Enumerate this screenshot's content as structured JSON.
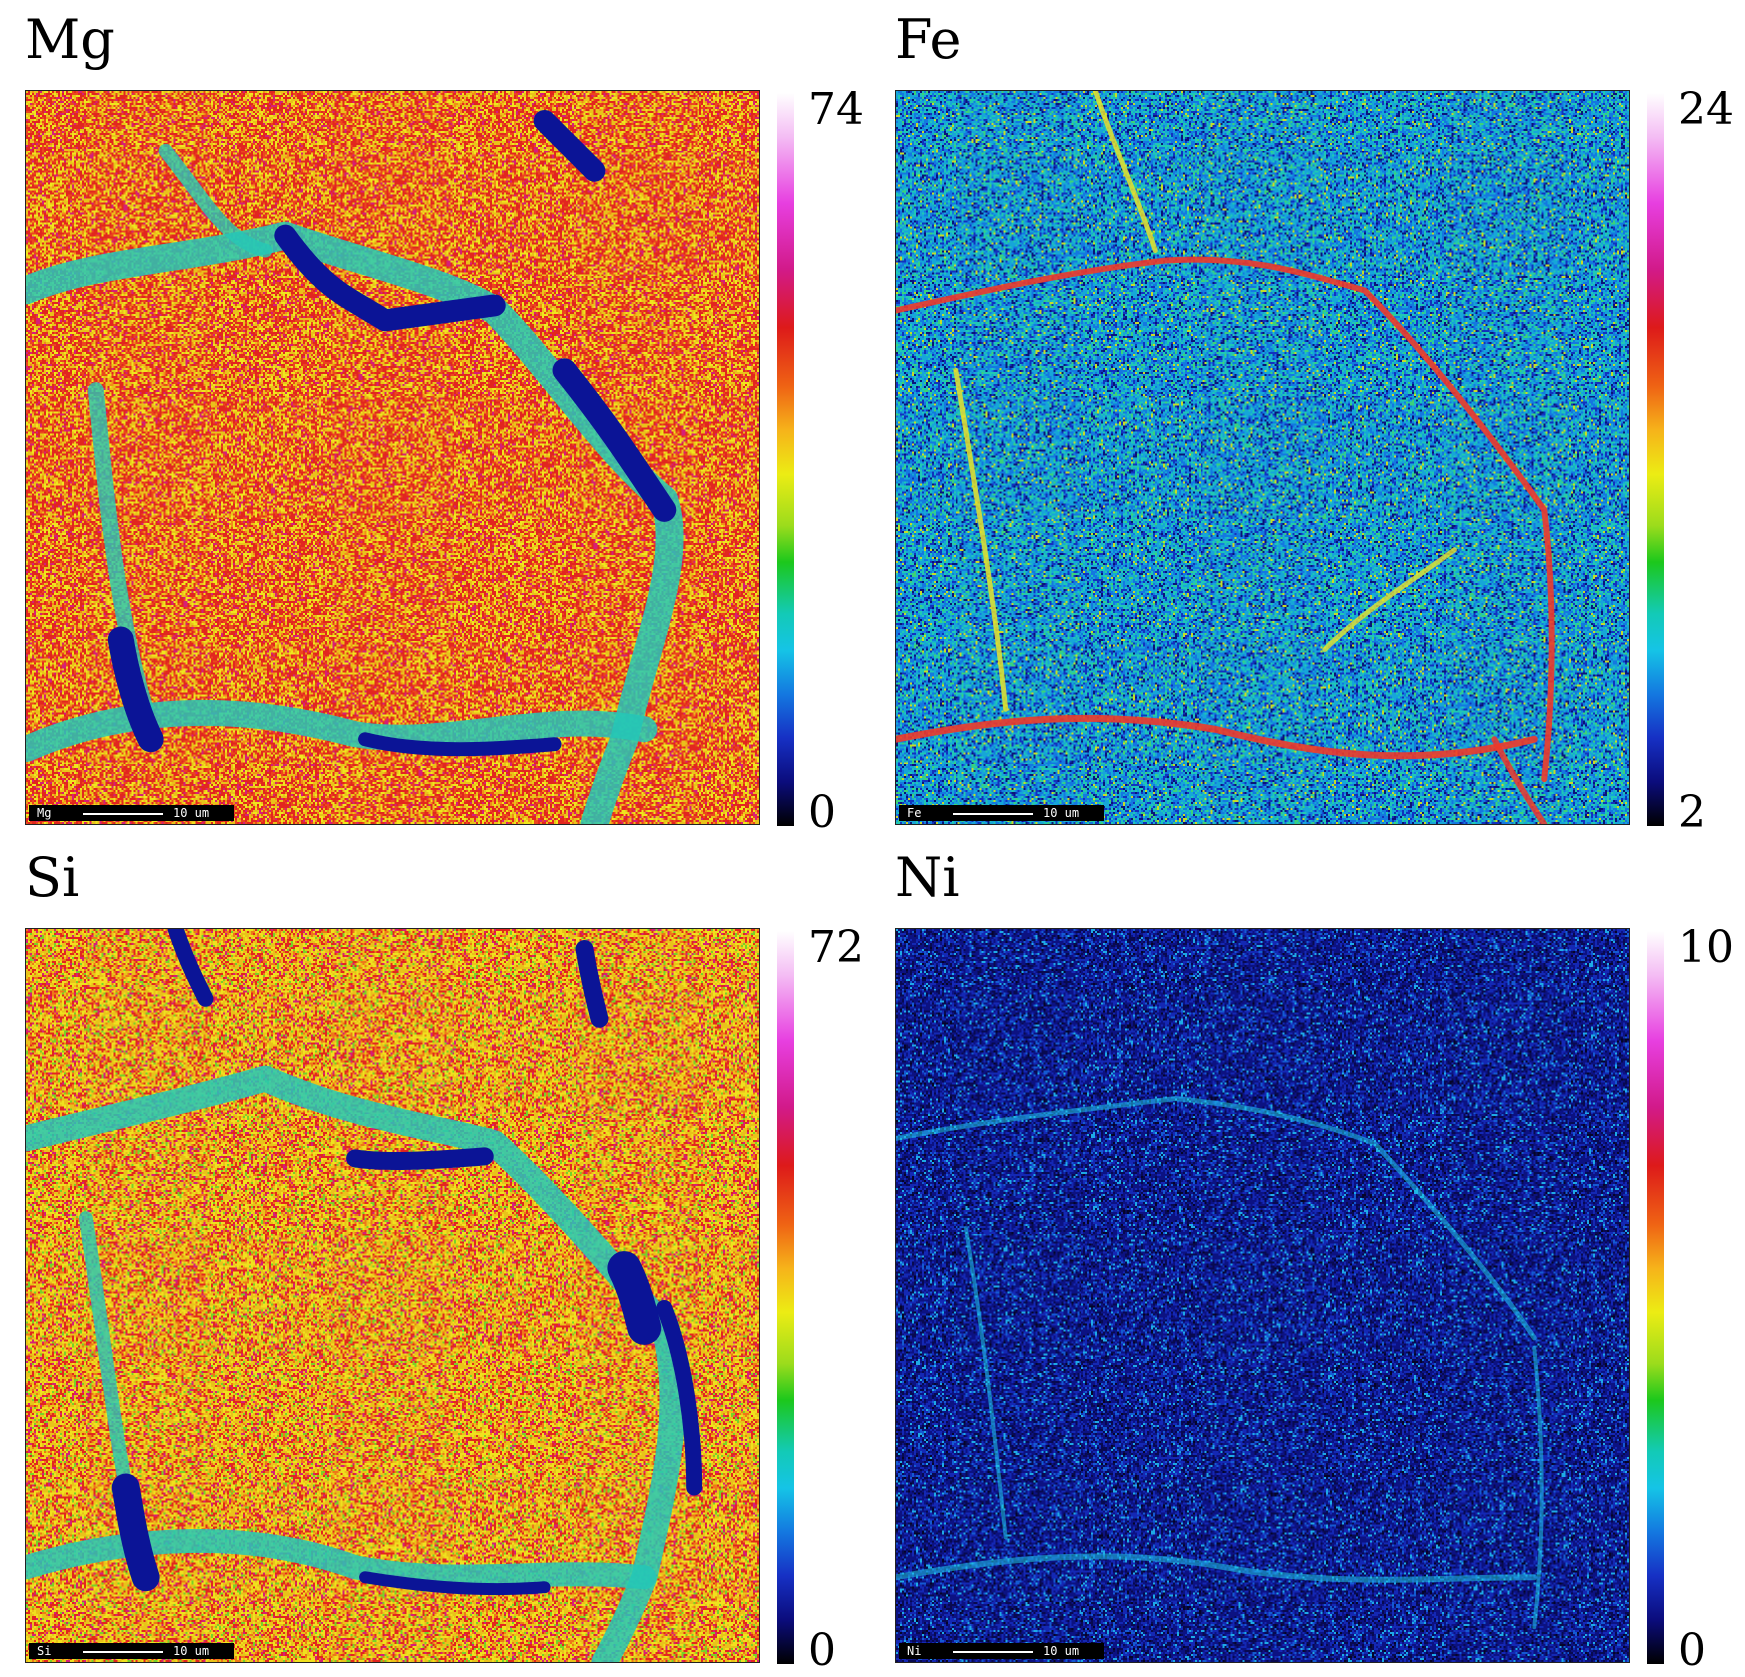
{
  "panels": [
    {
      "id": "mg",
      "title": "Mg",
      "scale_max": "74",
      "scale_min": "0",
      "scale_element": "Mg",
      "scale_length": "10 um",
      "background": "red-yellow",
      "vein": "blue-green",
      "accent": "#e2261f"
    },
    {
      "id": "fe",
      "title": "Fe",
      "scale_max": "24",
      "scale_min": "2",
      "scale_element": "Fe",
      "scale_length": "10 um",
      "background": "blue-cyan",
      "vein": "yellow-red",
      "accent": "#16a6d8"
    },
    {
      "id": "si",
      "title": "Si",
      "scale_max": "72",
      "scale_min": "0",
      "scale_element": "Si",
      "scale_length": "10 um",
      "background": "red-yellow",
      "vein": "blue-green",
      "accent": "#e9c21a"
    },
    {
      "id": "ni",
      "title": "Ni",
      "scale_max": "10",
      "scale_min": "0",
      "scale_element": "Ni",
      "scale_length": "10 um",
      "background": "dark-blue",
      "vein": "cyan",
      "accent": "#1a2fa6"
    }
  ]
}
